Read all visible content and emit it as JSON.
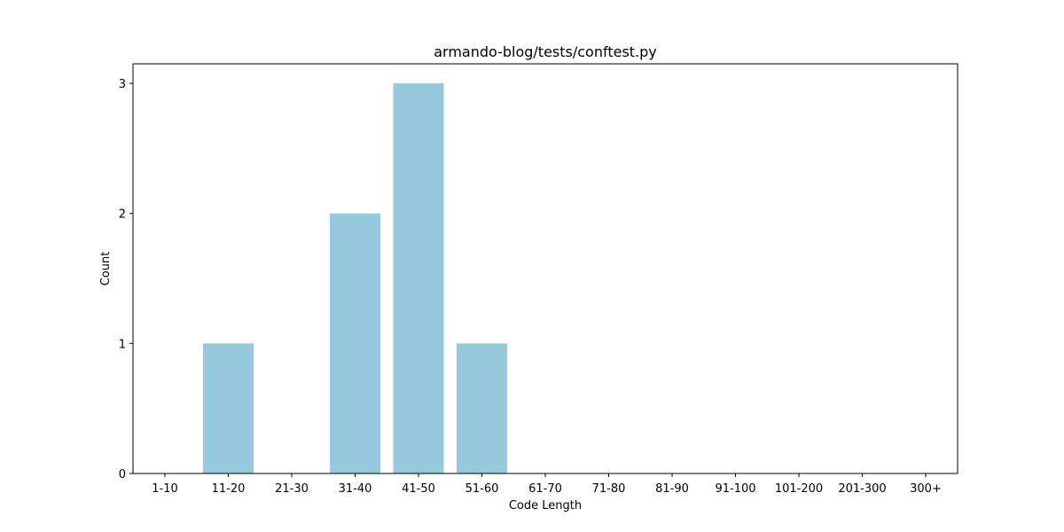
{
  "chart_data": {
    "type": "bar",
    "title": "armando-blog/tests/conftest.py",
    "xlabel": "Code Length",
    "ylabel": "Count",
    "categories": [
      "1-10",
      "11-20",
      "21-30",
      "31-40",
      "41-50",
      "51-60",
      "61-70",
      "71-80",
      "81-90",
      "91-100",
      "101-200",
      "201-300",
      "300+"
    ],
    "values": [
      0,
      1,
      0,
      2,
      3,
      1,
      0,
      0,
      0,
      0,
      0,
      0,
      0
    ],
    "yticks": [
      0,
      1,
      2,
      3
    ],
    "ylim": [
      0,
      3.15
    ],
    "bar_color": "#96c9dc",
    "grid": false,
    "legend": "none"
  }
}
